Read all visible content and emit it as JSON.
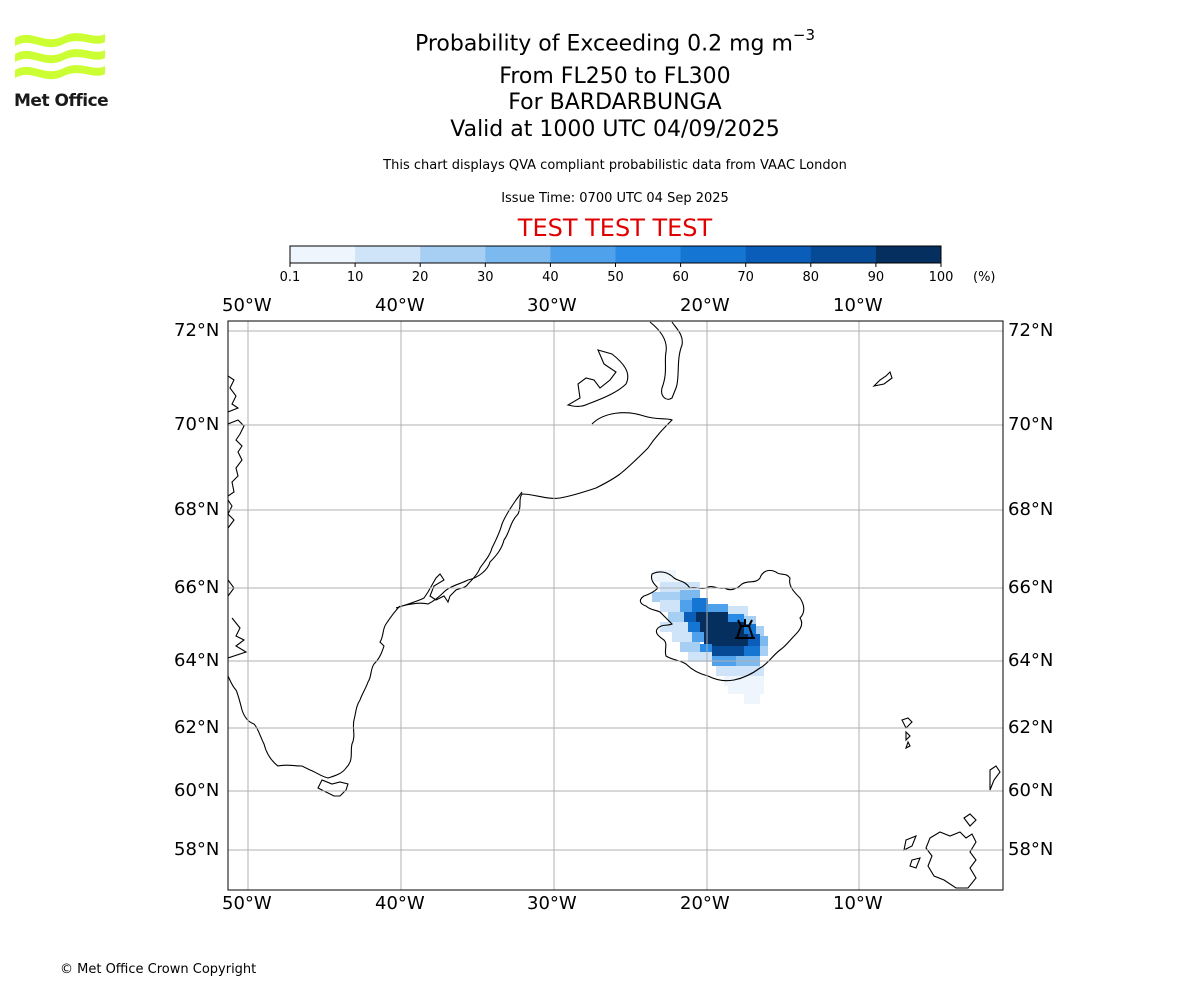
{
  "brand": {
    "logo_text": "Met Office",
    "logo_color": "#ccff33",
    "logo_icon": "met-office-wave-logo"
  },
  "header": {
    "title": "Probability of Exceeding 0.2 mg m",
    "title_superscript": "−3",
    "level_range": "From FL250 to FL300",
    "volcano": "For BARDARBUNGA",
    "valid_time": "Valid at 1000 UTC 04/09/2025",
    "description": "This chart displays QVA compliant probabilistic data from VAAC London",
    "issue_time": "Issue Time: 0700 UTC 04 Sep 2025",
    "test_banner": "TEST TEST TEST",
    "test_banner_color": "#e00000"
  },
  "colorbar": {
    "ticks": [
      "0.1",
      "10",
      "20",
      "30",
      "40",
      "50",
      "60",
      "70",
      "80",
      "90",
      "100"
    ],
    "unit": "(%)",
    "colors": [
      "#eef5fc",
      "#cfe4f8",
      "#a6cff3",
      "#7cb9ee",
      "#4ea1ea",
      "#2a8ce6",
      "#1575d3",
      "#0a5eb9",
      "#064a96",
      "#042f5f"
    ]
  },
  "map": {
    "lon_labels": [
      "50°W",
      "40°W",
      "30°W",
      "20°W",
      "10°W"
    ],
    "lat_labels": [
      "72°N",
      "70°N",
      "68°N",
      "66°N",
      "64°N",
      "62°N",
      "60°N",
      "58°N"
    ],
    "volcano_marker": "volcano-icon",
    "gridline_color": "#b0b0b0"
  },
  "footer": {
    "copyright": "© Met Office Crown Copyright"
  }
}
